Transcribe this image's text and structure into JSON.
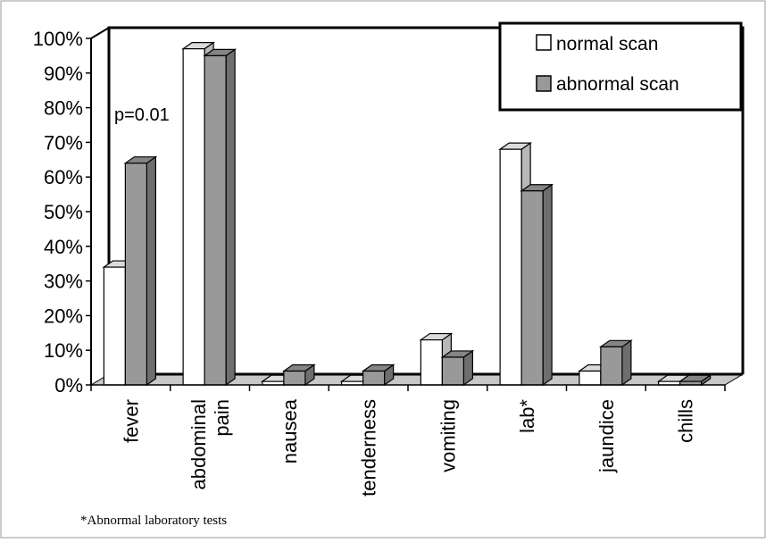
{
  "chart_data": {
    "type": "bar",
    "categories": [
      "fever",
      "abdominal pain",
      "nausea",
      "tenderness",
      "vomiting",
      "lab*",
      "jaundice",
      "chills"
    ],
    "category_lines": [
      [
        "fever"
      ],
      [
        "abdominal",
        "pain"
      ],
      [
        "nausea"
      ],
      [
        "tenderness"
      ],
      [
        "vomiting"
      ],
      [
        "lab*"
      ],
      [
        "jaundice"
      ],
      [
        "chills"
      ]
    ],
    "series": [
      {
        "name": "normal scan",
        "color": "#ffffff",
        "values": [
          34,
          97,
          1,
          1,
          13,
          68,
          4,
          1
        ]
      },
      {
        "name": "abnormal scan",
        "color": "#999999",
        "values": [
          64,
          95,
          4,
          4,
          8,
          56,
          11,
          1
        ]
      }
    ],
    "ylim": [
      0,
      100
    ],
    "y_ticks": [
      "0%",
      "10%",
      "20%",
      "30%",
      "40%",
      "50%",
      "60%",
      "70%",
      "80%",
      "90%",
      "100%"
    ],
    "grid": false,
    "three_d": true,
    "legend_position": "top-right",
    "annotation": "p=0.01",
    "footnote": "*Abnormal laboratory tests",
    "floor_color": "#c8c8c8"
  }
}
